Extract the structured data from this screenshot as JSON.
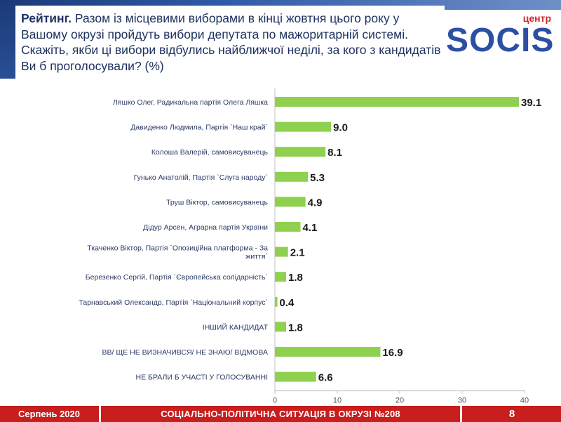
{
  "header": {
    "lead": "Рейтинг.",
    "question": "Разом із місцевими виборами в кінці жовтня цього року у Вашому окрузі пройдуть вибори депутата по мажоритарній системі. Скажіть, якби ці вибори відбулись найближчої неділі, за кого з кандидатів Ви б проголосували? (%)"
  },
  "logo": {
    "small": "центр",
    "main": "SOCIS"
  },
  "chart_data": {
    "type": "bar",
    "orientation": "horizontal",
    "title": "",
    "xlabel": "",
    "ylabel": "",
    "xlim": [
      0,
      40
    ],
    "xticks": [
      0,
      10,
      20,
      30,
      40
    ],
    "bar_color": "#8fd14f",
    "categories": [
      [
        "Ляшко Олег, Радикальна партія Олега Ляшка"
      ],
      [
        "Давиденко Людмила, Партія `Наш край`"
      ],
      [
        "Колоша Валерій, самовисуванець"
      ],
      [
        "Гунько Анатолій, Партія `Слуга народу`"
      ],
      [
        "Труш Віктор, самовисуванець"
      ],
      [
        "Дідур Арсен, Аграрна партія України"
      ],
      [
        "Ткаченко Віктор, Партія `Опозиційна платформа - За",
        "життя`"
      ],
      [
        "Березенко Сергій, Партія `Європейська солідарність`"
      ],
      [
        "Тарнавський Олександр, Партія `Національний корпус`"
      ],
      [
        "ІНШИЙ КАНДИДАТ"
      ],
      [
        "ВВ/ ЩЕ НЕ ВИЗНАЧИВСЯ/ НЕ ЗНАЮ/ ВІДМОВА"
      ],
      [
        "НЕ БРАЛИ Б УЧАСТІ У ГОЛОСУВАННІ"
      ]
    ],
    "values": [
      39.1,
      9.0,
      8.1,
      5.3,
      4.9,
      4.1,
      2.1,
      1.8,
      0.4,
      1.8,
      16.9,
      6.6
    ],
    "value_labels": [
      "39.1",
      "9.0",
      "8.1",
      "5.3",
      "4.9",
      "4.1",
      "2.1",
      "1.8",
      "0.4",
      "1.8",
      "16.9",
      "6.6"
    ]
  },
  "footer": {
    "date": "Серпень 2020",
    "title": "СОЦІАЛЬНО-ПОЛІТИЧНА СИТУАЦІЯ В ОКРУЗІ №208",
    "page": "8"
  }
}
